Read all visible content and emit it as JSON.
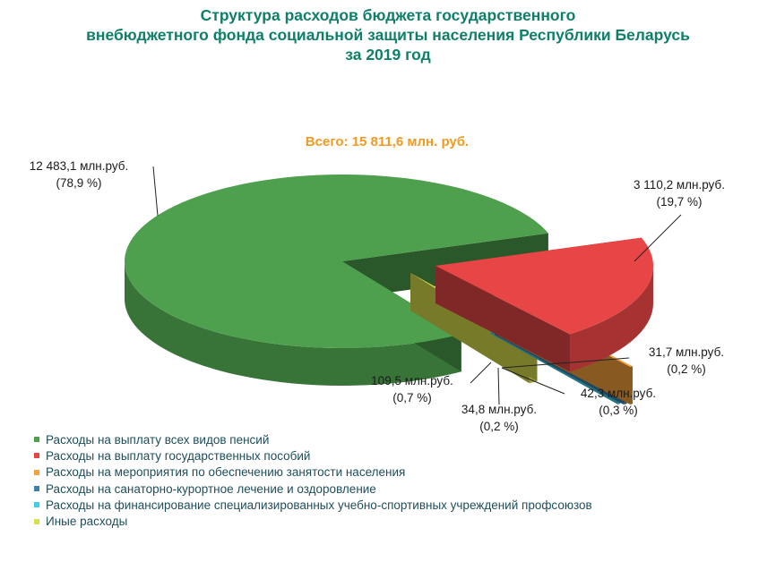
{
  "chart_data": {
    "type": "pie",
    "style": "3d-exploded",
    "title_lines": [
      "Структура расходов бюджета государственного",
      "внебюджетного фонда социальной защиты населения Республики Беларусь",
      "за 2019 год"
    ],
    "subtitle": "Всего: 15 811,6 млн. руб.",
    "legend_position": "bottom-left",
    "slices": [
      {
        "name": "Расходы на выплату всех видов пенсий",
        "value": 12483.1,
        "percent": 78.9,
        "label_value": "12 483,1 млн.руб.",
        "label_pct": "(78,9 %)",
        "color": "#4ea04e"
      },
      {
        "name": "Расходы на выплату государственных пособий",
        "value": 3110.2,
        "percent": 19.7,
        "label_value": "3 110,2 млн.руб.",
        "label_pct": "(19,7 %)",
        "color": "#e84646"
      },
      {
        "name": "Расходы на мероприятия по обеспечению занятости населения",
        "value": 31.7,
        "percent": 0.2,
        "label_value": "31,7 млн.руб.",
        "label_pct": "(0,2 %)",
        "color": "#f7a13c"
      },
      {
        "name": "Расходы на санаторно-курортное лечение и оздоровление",
        "value": 42.3,
        "percent": 0.3,
        "label_value": "42,3 млн.руб.",
        "label_pct": "(0,3 %)",
        "color": "#3c7fb0"
      },
      {
        "name": "Расходы на финансирование специализированных учебно-спортивных учреждений профсоюзов",
        "value": 34.8,
        "percent": 0.2,
        "label_value": "34,8 млн.руб.",
        "label_pct": "(0,2 %)",
        "color": "#3fd0e8"
      },
      {
        "name": "Иные расходы",
        "value": 109.5,
        "percent": 0.7,
        "label_value": "109,5 млн.руб.",
        "label_pct": "(0,7 %)",
        "color": "#d8e04a"
      }
    ]
  }
}
